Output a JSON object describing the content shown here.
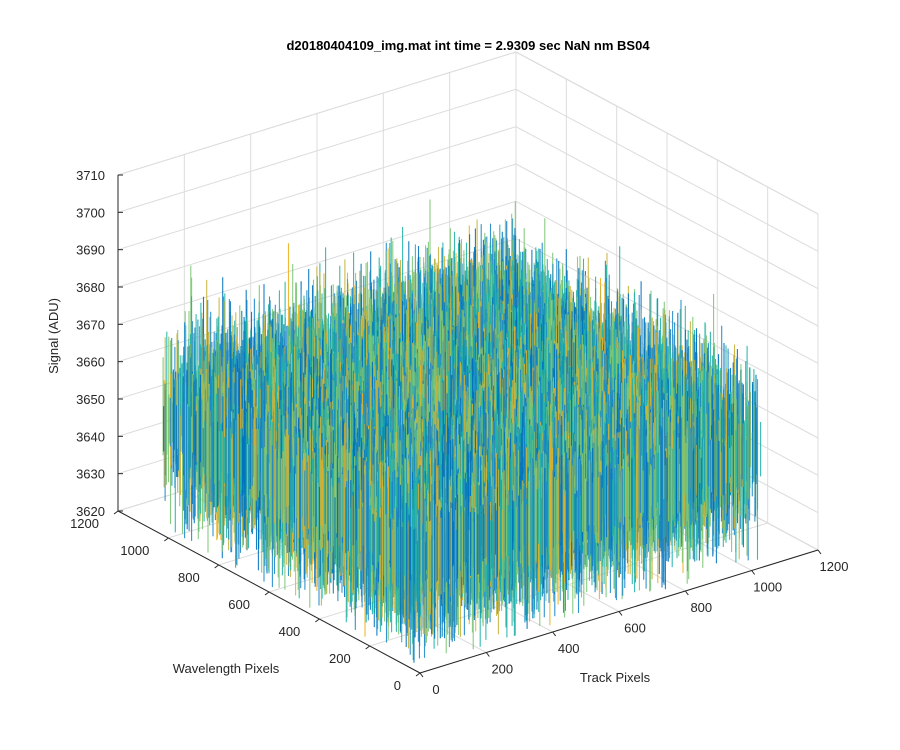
{
  "chart_data": {
    "type": "surface3d",
    "title": "d20180404109_img.mat int time = 2.9309 sec  NaN nm BS04",
    "xlabel": "Track Pixels",
    "ylabel": "Wavelength Pixels",
    "zlabel": "Signal (ADU)",
    "xlim": [
      0,
      1200
    ],
    "ylim": [
      0,
      1200
    ],
    "zlim": [
      3620,
      3710
    ],
    "xticks": [
      "0",
      "200",
      "400",
      "600",
      "800",
      "1000",
      "1200"
    ],
    "yticks": [
      "0",
      "200",
      "400",
      "600",
      "800",
      "1000",
      "1200"
    ],
    "zticks": [
      "3620",
      "3630",
      "3640",
      "3650",
      "3660",
      "3670",
      "3680",
      "3690",
      "3700",
      "3710"
    ],
    "data_extent": {
      "x": [
        1,
        1024
      ],
      "y": [
        1,
        1024
      ]
    },
    "signal_mean": 3650,
    "signal_range_approx": [
      3622,
      3690
    ],
    "colormap": [
      "#0072BD",
      "#1E88C8",
      "#20B2AA",
      "#7CC576",
      "#C9B33C",
      "#EDB120"
    ],
    "grid": true,
    "legend": "none"
  }
}
